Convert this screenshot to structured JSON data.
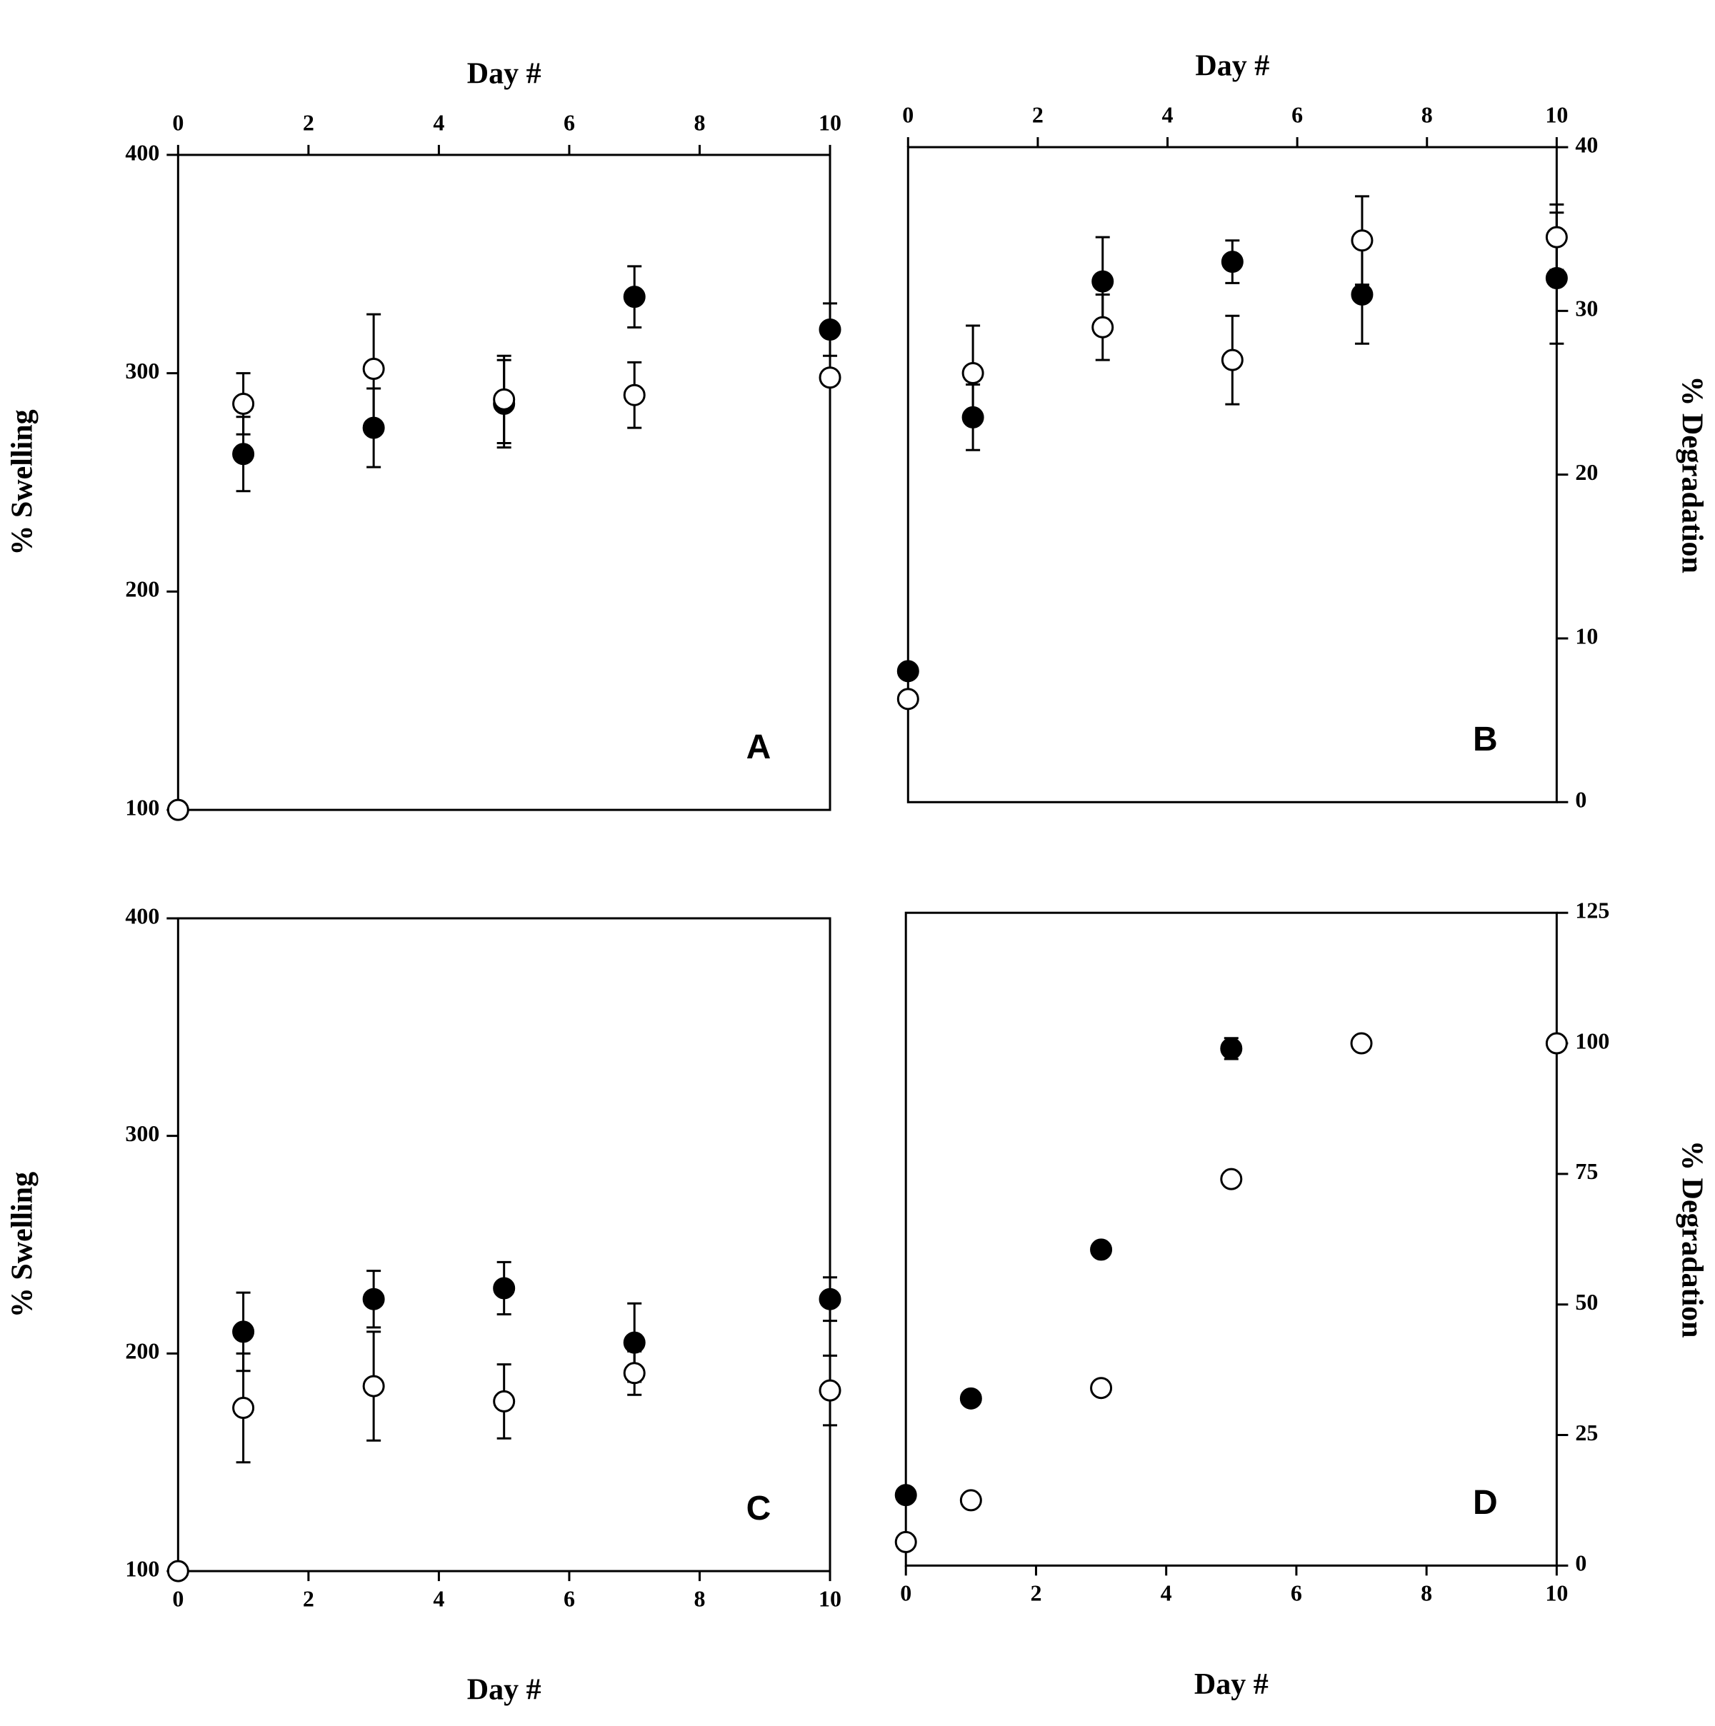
{
  "chart_data": [
    {
      "type": "scatter",
      "panel_label": "A",
      "x_label": "Day #",
      "y_label": "% Swelling",
      "x_axis": "top",
      "y_axis": "left",
      "xlim": [
        0,
        10
      ],
      "xticks": [
        0,
        2,
        4,
        6,
        8,
        10
      ],
      "ylim": [
        100,
        400
      ],
      "yticks": [
        100,
        200,
        300,
        400
      ],
      "series": [
        {
          "color": "#000000",
          "x": [
            1,
            3,
            5,
            7,
            10
          ],
          "values": [
            263,
            275,
            286,
            335,
            320
          ],
          "errors": [
            17,
            18,
            20,
            14,
            12
          ]
        },
        {
          "color": "#ffffff",
          "x": [
            0,
            1,
            3,
            5,
            7,
            10
          ],
          "values": [
            100,
            286,
            302,
            288,
            290,
            298
          ],
          "errors": [
            null,
            14,
            25,
            20,
            15,
            null
          ]
        }
      ]
    },
    {
      "type": "scatter",
      "panel_label": "B",
      "x_label": "Day #",
      "y_label": "% Degradation",
      "x_axis": "top",
      "y_axis": "right",
      "xlim": [
        0,
        10
      ],
      "xticks": [
        0,
        2,
        4,
        6,
        8,
        10
      ],
      "ylim": [
        0,
        40
      ],
      "yticks": [
        0,
        10,
        20,
        30,
        40
      ],
      "series": [
        {
          "color": "#000000",
          "x": [
            0,
            1,
            3,
            5,
            7,
            10
          ],
          "values": [
            8,
            23.5,
            31.8,
            33,
            31,
            32
          ],
          "errors": [
            null,
            2,
            2.7,
            1.3,
            3,
            4
          ]
        },
        {
          "color": "#ffffff",
          "x": [
            0,
            1,
            3,
            5,
            7,
            10
          ],
          "values": [
            6.3,
            26.2,
            29,
            27,
            34.3,
            34.5
          ],
          "errors": [
            null,
            2.9,
            2,
            2.7,
            2.7,
            2
          ]
        }
      ]
    },
    {
      "type": "scatter",
      "panel_label": "C",
      "x_label": "Day #",
      "y_label": "% Swelling",
      "x_axis": "bottom",
      "y_axis": "left",
      "xlim": [
        0,
        10
      ],
      "xticks": [
        0,
        2,
        4,
        6,
        8,
        10
      ],
      "ylim": [
        100,
        400
      ],
      "yticks": [
        100,
        200,
        300,
        400
      ],
      "series": [
        {
          "color": "#000000",
          "x": [
            1,
            3,
            5,
            7,
            10
          ],
          "values": [
            210,
            225,
            230,
            205,
            225
          ],
          "errors": [
            18,
            13,
            12,
            18,
            10
          ]
        },
        {
          "color": "#ffffff",
          "x": [
            0,
            1,
            3,
            5,
            7,
            10
          ],
          "values": [
            100,
            175,
            185,
            178,
            191,
            183
          ],
          "errors": [
            null,
            25,
            25,
            17,
            10,
            16
          ]
        }
      ]
    },
    {
      "type": "scatter",
      "panel_label": "D",
      "x_label": "Day #",
      "y_label": "% Degradation",
      "x_axis": "bottom",
      "y_axis": "right",
      "xlim": [
        0,
        10
      ],
      "xticks": [
        0,
        2,
        4,
        6,
        8,
        10
      ],
      "ylim": [
        0,
        125
      ],
      "yticks": [
        0,
        25,
        50,
        75,
        100,
        125
      ],
      "series": [
        {
          "color": "#000000",
          "x": [
            0,
            1,
            3,
            5
          ],
          "values": [
            13.5,
            32,
            60.5,
            99
          ],
          "errors": [
            null,
            null,
            null,
            2
          ]
        },
        {
          "color": "#ffffff",
          "x": [
            0,
            1,
            3,
            5,
            7,
            10
          ],
          "values": [
            4.5,
            12.5,
            34,
            74,
            100,
            100
          ],
          "errors": [
            null,
            null,
            null,
            null,
            null,
            null
          ]
        }
      ]
    }
  ]
}
